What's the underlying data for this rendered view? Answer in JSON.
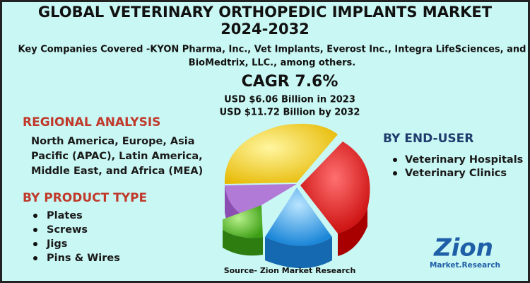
{
  "header": {
    "title_line1": "GLOBAL VETERINARY ORTHOPEDIC IMPLANTS MARKET",
    "title_line2": "2024-2032",
    "subtitle_line1": "Key Companies Covered -KYON Pharma, Inc., Vet Implants, Everost Inc., Integra LifeSciences, and",
    "subtitle_line2": "BioMedtrix, LLC., among others."
  },
  "stats": {
    "cagr": "CAGR 7.6%",
    "value_2023": "USD $6.06 Billion in 2023",
    "value_2032": "USD $11.72 Billion by 2032"
  },
  "regional": {
    "heading": "REGIONAL ANALYSIS",
    "lines": [
      "North America, Europe, Asia",
      "Pacific (APAC), Latin America,",
      "Middle East, and Africa (MEA)"
    ]
  },
  "product_type": {
    "heading": "BY PRODUCT TYPE",
    "items": [
      "Plates",
      "Screws",
      "Jigs",
      "Pins & Wires"
    ]
  },
  "end_user": {
    "heading": "BY END-USER",
    "items": [
      "Veterinary Hospitals",
      "Veterinary Clinics"
    ]
  },
  "source": "Source- Zion Market Research",
  "logo": {
    "name": "Zion",
    "tagline": "Market.Research"
  }
}
